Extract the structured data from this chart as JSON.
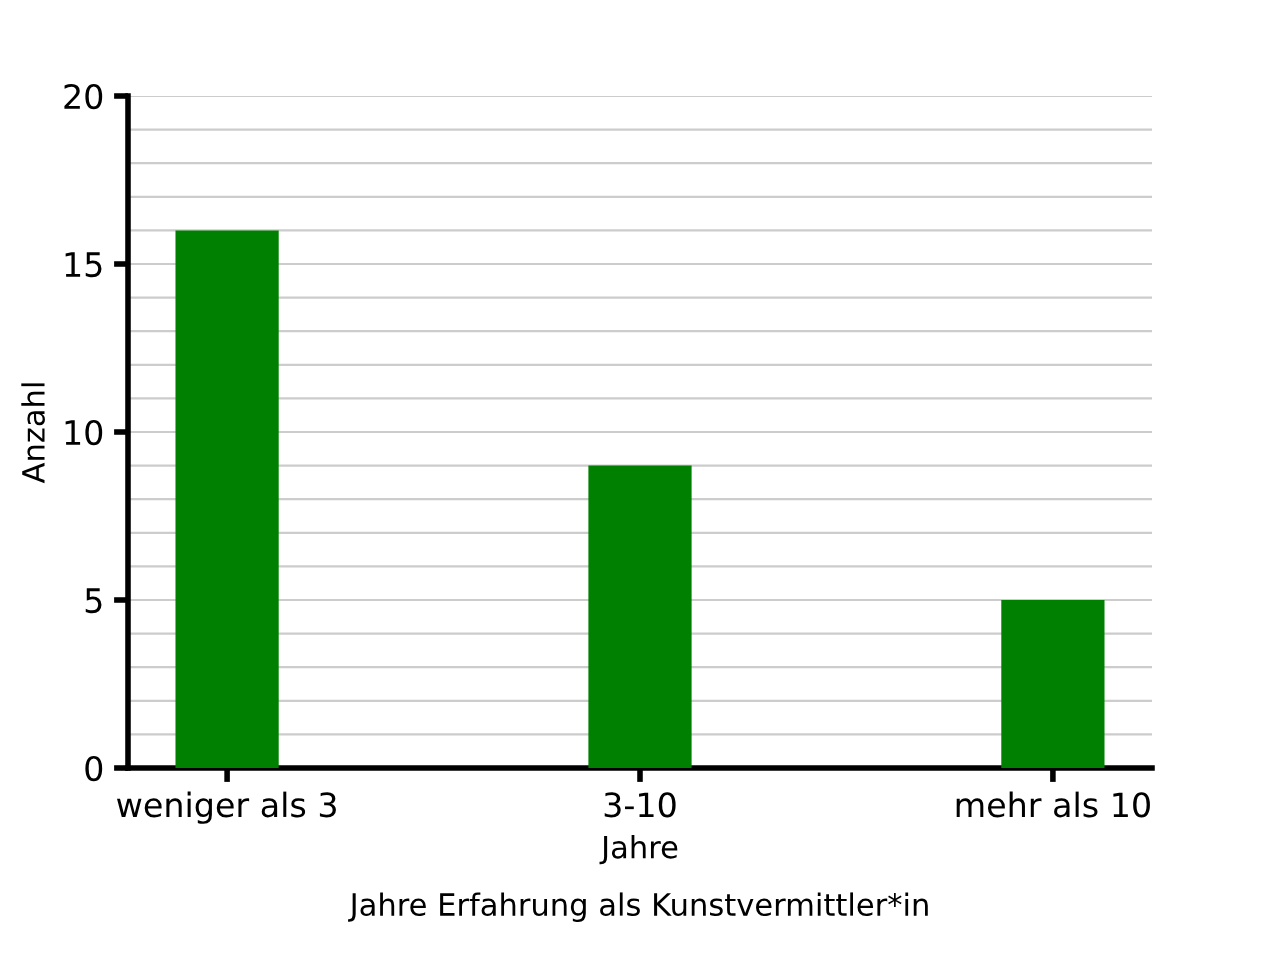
{
  "chart_data": {
    "type": "bar",
    "xlabel": "Jahre",
    "ylabel": "Anzahl",
    "annotations": [
      "Jahre Erfahrung als Kunstvermittler*in"
    ],
    "categories": [
      "weniger als 3",
      "3-10",
      "mehr als 10"
    ],
    "values": [
      16,
      9,
      5
    ],
    "color": "#008000",
    "ylim": [
      0,
      20
    ],
    "yticks": [
      0,
      5,
      10,
      15,
      20
    ],
    "grid": "y",
    "legend": false
  }
}
